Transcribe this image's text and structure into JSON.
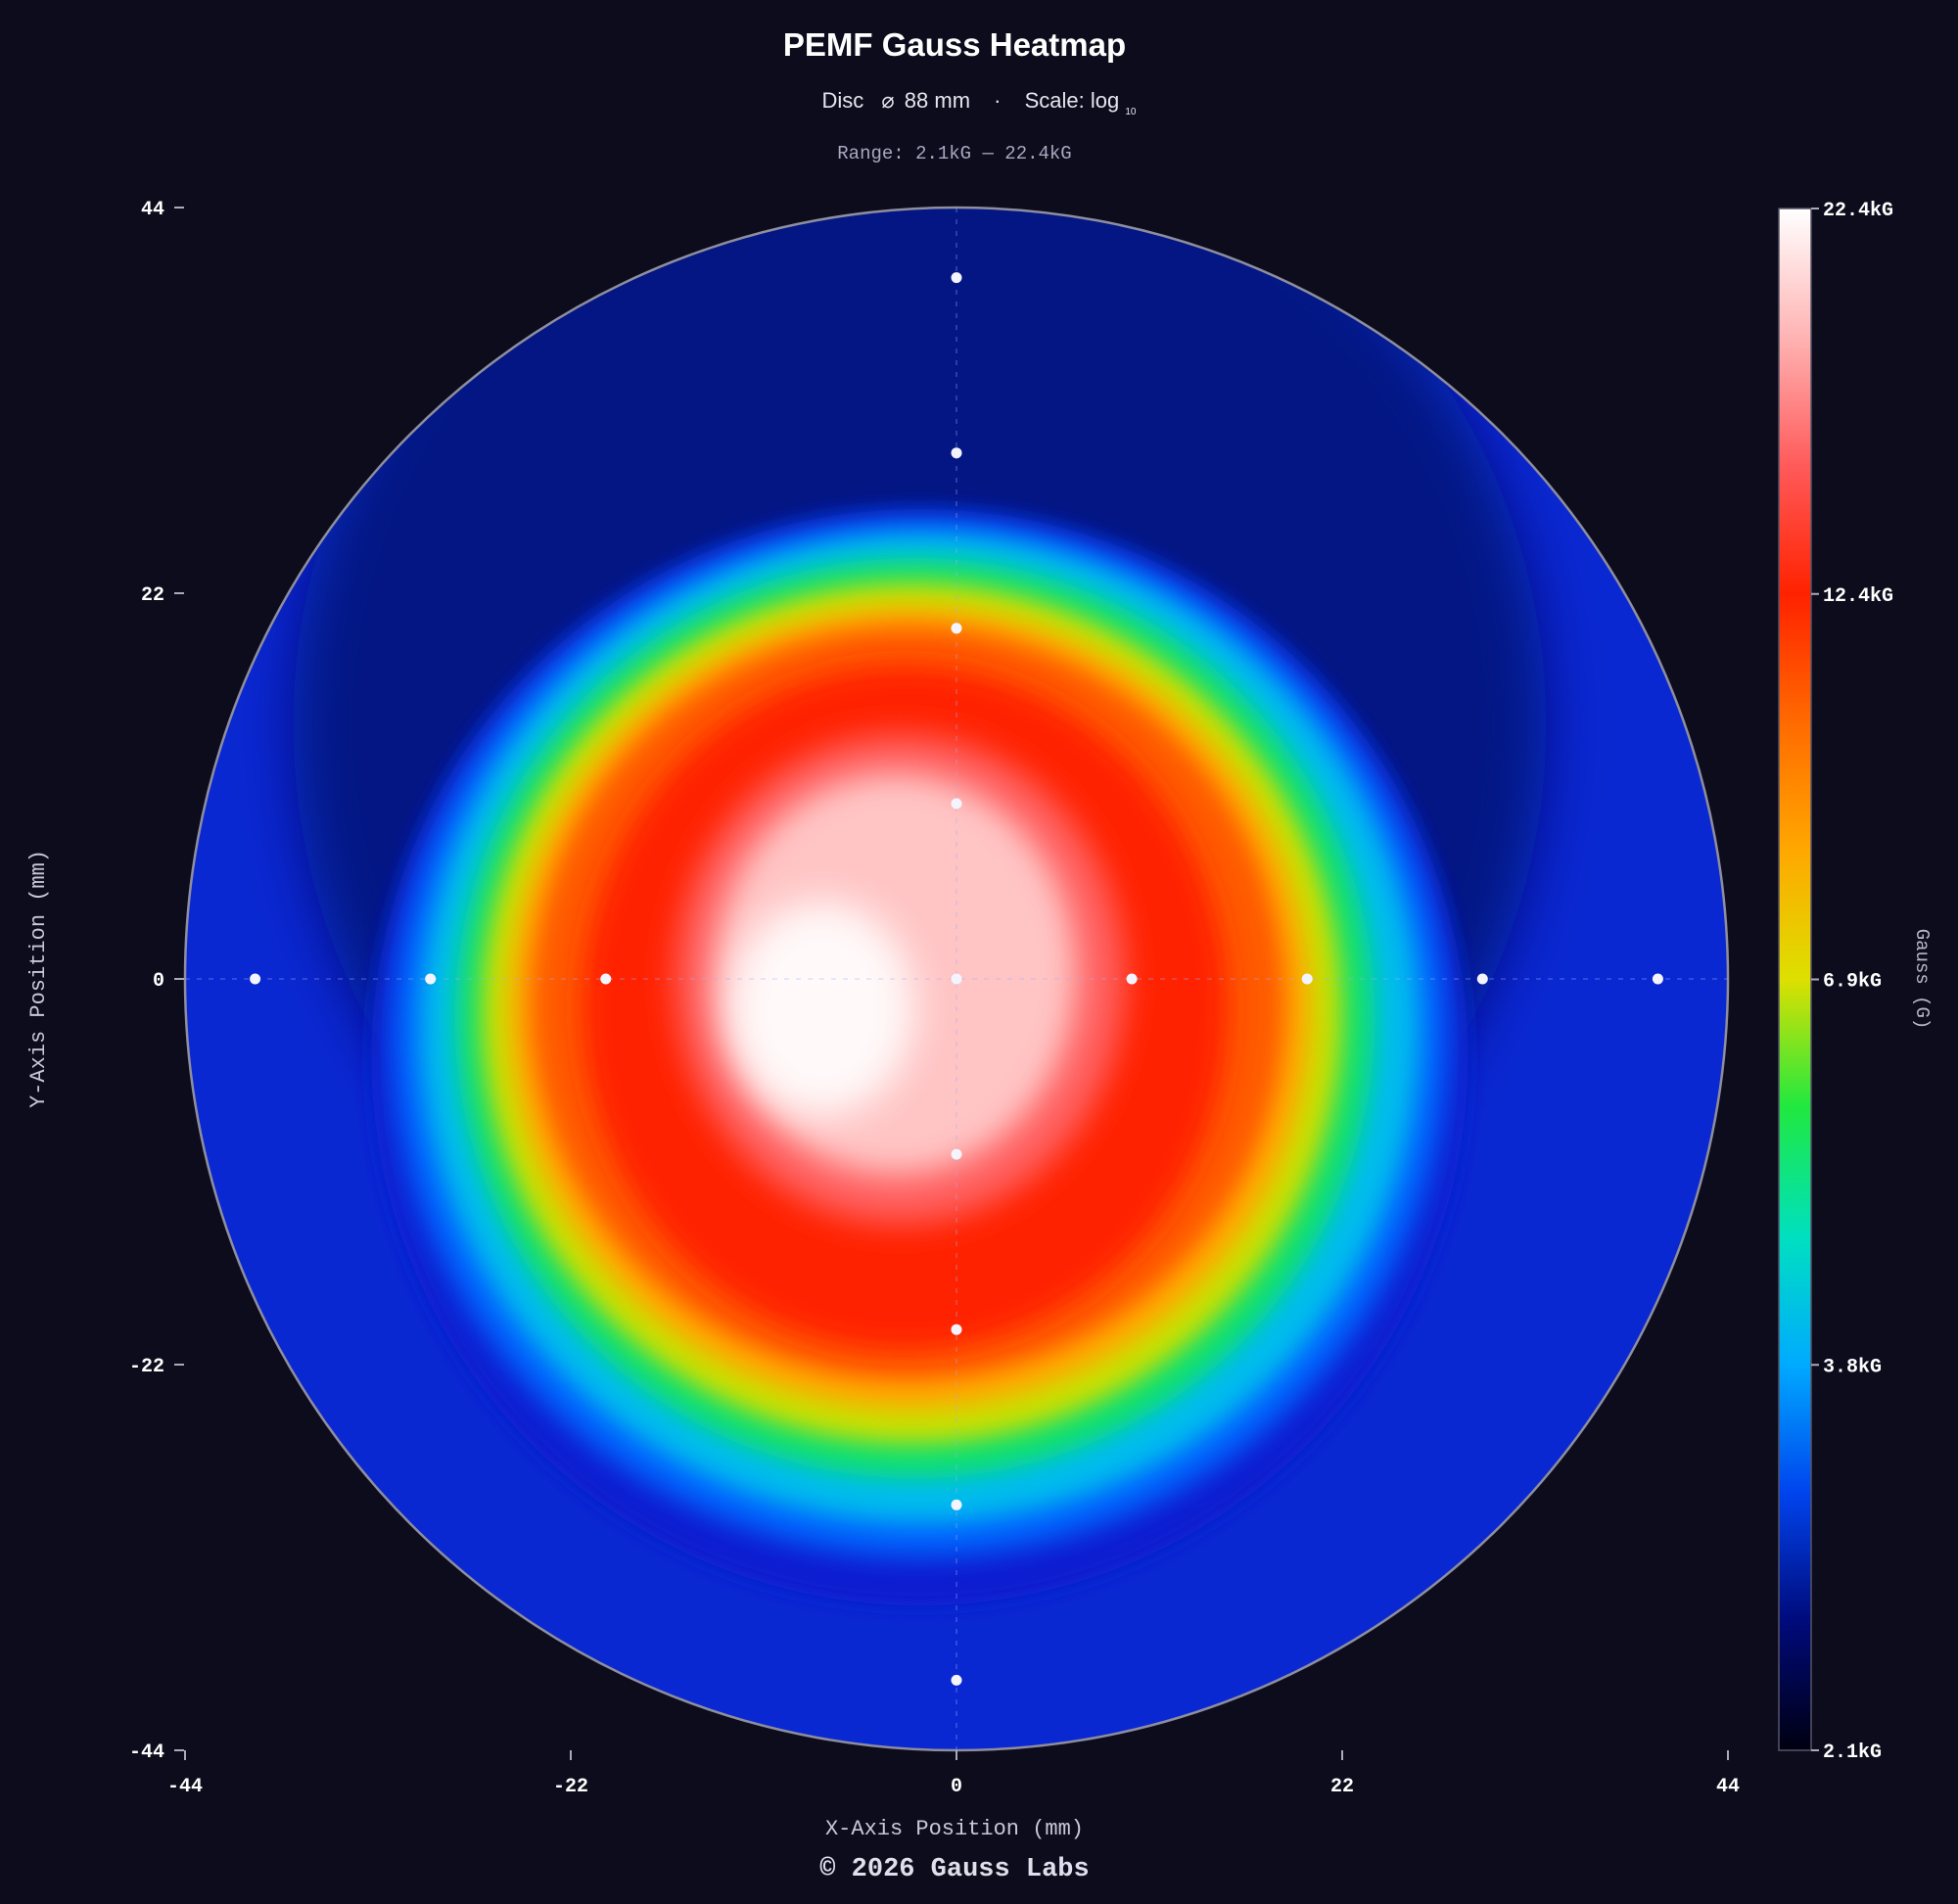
{
  "chart_data": {
    "type": "heatmap",
    "title": "PEMF Gauss Heatmap",
    "subtitle": {
      "disc_label": "Disc",
      "diameter_symbol": "⌀",
      "diameter": "88 mm",
      "separator": "·",
      "scale_label": "Scale: log",
      "scale_base": "10"
    },
    "range_label": "Range: 2.1kG — 22.4kG",
    "xlabel": "X-Axis Position (mm)",
    "ylabel": "Y-Axis Position (mm)",
    "xlim": [
      -44,
      44
    ],
    "ylim": [
      -44,
      44
    ],
    "x_ticks": [
      "-44",
      "-22",
      "0",
      "22",
      "44"
    ],
    "y_ticks": [
      "44",
      "22",
      "0",
      "-22",
      "-44"
    ],
    "colorbar": {
      "label": "Gauss (G)",
      "min": 2100,
      "max": 22400,
      "scale": "log",
      "tick_labels": [
        "22.4kG",
        "12.4kG",
        "6.9kG",
        "3.8kG",
        "2.1kG"
      ],
      "colors": [
        "#000010",
        "#000a7a",
        "#0044ee",
        "#00aaff",
        "#00e0c0",
        "#20e840",
        "#dde000",
        "#ffa800",
        "#ff6a00",
        "#ff2200",
        "#ff5a5a",
        "#ffb4b4",
        "#ffffff"
      ]
    },
    "disc_radius_mm": 44,
    "peak": {
      "x": -6,
      "y": 0,
      "value": 22400
    },
    "sample_points": [
      {
        "x": 0,
        "y": 40
      },
      {
        "x": 0,
        "y": 30
      },
      {
        "x": 0,
        "y": 20
      },
      {
        "x": 0,
        "y": 10
      },
      {
        "x": 0,
        "y": 0
      },
      {
        "x": 0,
        "y": -10
      },
      {
        "x": 0,
        "y": -20
      },
      {
        "x": 0,
        "y": -30
      },
      {
        "x": 0,
        "y": -40
      },
      {
        "x": -40,
        "y": 0
      },
      {
        "x": -30,
        "y": 0
      },
      {
        "x": -20,
        "y": 0
      },
      {
        "x": 10,
        "y": 0
      },
      {
        "x": 20,
        "y": 0
      },
      {
        "x": 30,
        "y": 0
      },
      {
        "x": 40,
        "y": 0
      }
    ],
    "grid": false,
    "legend": "colorbar-right"
  },
  "footer": "© 2026 Gauss Labs"
}
